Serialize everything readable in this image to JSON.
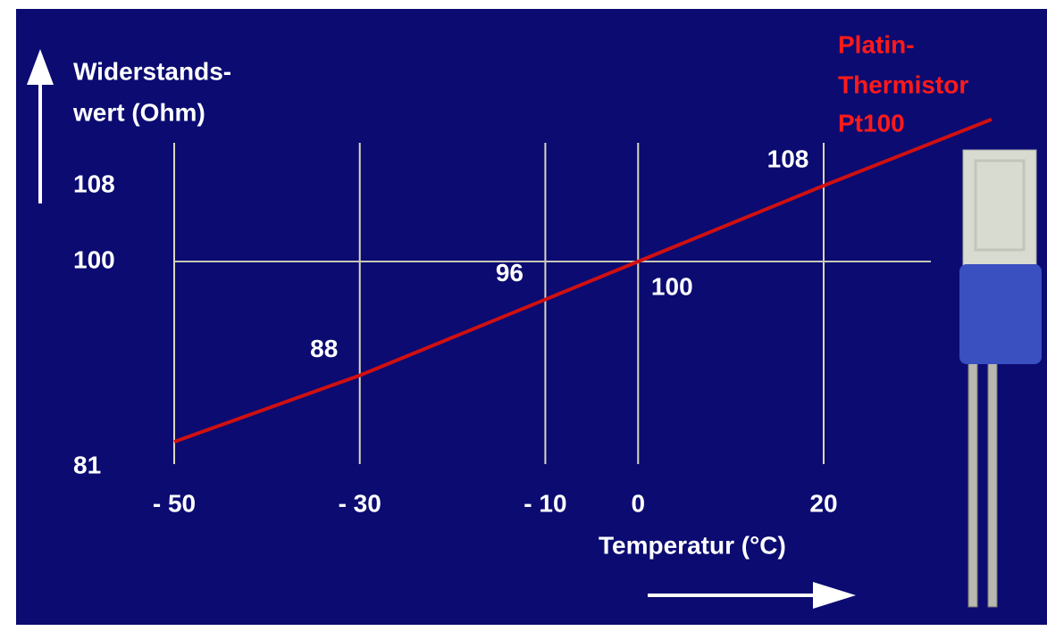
{
  "chart_data": {
    "type": "line",
    "y_label": [
      "Widerstands-",
      "wert (Ohm)"
    ],
    "x_label": "Temperatur (°C)",
    "annotation": [
      "Platin-",
      "Thermistor",
      "Pt100"
    ],
    "x": [
      -50,
      -30,
      -10,
      0,
      20
    ],
    "series": [
      {
        "name": "Pt100",
        "color": "#d01010",
        "values": [
          81,
          88,
          96,
          100,
          108
        ]
      }
    ],
    "xlim": [
      -50,
      20
    ],
    "xticks": [
      {
        "value": -50,
        "label": "- 50"
      },
      {
        "value": -30,
        "label": "- 30"
      },
      {
        "value": -10,
        "label": "- 10"
      },
      0,
      20
    ],
    "ylim": [
      81,
      108
    ],
    "yticks": [
      81,
      100,
      108
    ],
    "grid": true
  }
}
